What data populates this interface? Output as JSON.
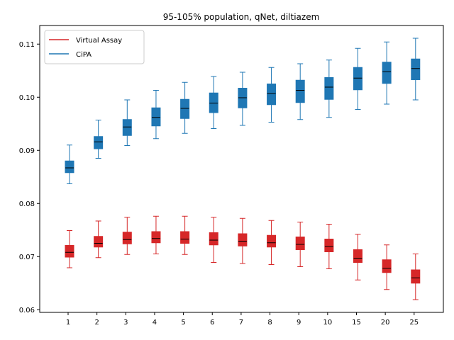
{
  "chart_data": {
    "type": "box",
    "title": "95-105% population, qNet, diltiazem",
    "xlabel": "",
    "ylabel": "",
    "categories": [
      "1",
      "2",
      "3",
      "4",
      "5",
      "6",
      "7",
      "8",
      "9",
      "10",
      "15",
      "20",
      "25"
    ],
    "ylim": [
      0.0595,
      0.1135
    ],
    "yticks": [
      0.06,
      0.07,
      0.08,
      0.09,
      0.1,
      0.11
    ],
    "ytick_labels": [
      "0.06",
      "0.07",
      "0.08",
      "0.09",
      "0.10",
      "0.11"
    ],
    "grid": false,
    "legend_position": "top-left",
    "series": [
      {
        "name": "Virtual Assay",
        "color": "#d62728",
        "boxes": [
          {
            "whislo": 0.0679,
            "q1": 0.0699,
            "med": 0.0708,
            "q3": 0.0721,
            "whishi": 0.0749
          },
          {
            "whislo": 0.0698,
            "q1": 0.0718,
            "med": 0.0725,
            "q3": 0.0738,
            "whishi": 0.0767
          },
          {
            "whislo": 0.0704,
            "q1": 0.0724,
            "med": 0.0732,
            "q3": 0.0746,
            "whishi": 0.0774
          },
          {
            "whislo": 0.0705,
            "q1": 0.0726,
            "med": 0.0734,
            "q3": 0.0747,
            "whishi": 0.0776
          },
          {
            "whislo": 0.0704,
            "q1": 0.0725,
            "med": 0.0733,
            "q3": 0.0747,
            "whishi": 0.0776
          },
          {
            "whislo": 0.0689,
            "q1": 0.0722,
            "med": 0.0731,
            "q3": 0.0745,
            "whishi": 0.0774
          },
          {
            "whislo": 0.0687,
            "q1": 0.072,
            "med": 0.0729,
            "q3": 0.0743,
            "whishi": 0.0772
          },
          {
            "whislo": 0.0685,
            "q1": 0.0718,
            "med": 0.0726,
            "q3": 0.074,
            "whishi": 0.0768
          },
          {
            "whislo": 0.0681,
            "q1": 0.0713,
            "med": 0.0723,
            "q3": 0.0737,
            "whishi": 0.0765
          },
          {
            "whislo": 0.0677,
            "q1": 0.0709,
            "med": 0.0719,
            "q3": 0.0733,
            "whishi": 0.0761
          },
          {
            "whislo": 0.0656,
            "q1": 0.0689,
            "med": 0.0697,
            "q3": 0.0713,
            "whishi": 0.0742
          },
          {
            "whislo": 0.0638,
            "q1": 0.067,
            "med": 0.0678,
            "q3": 0.0694,
            "whishi": 0.0722
          },
          {
            "whislo": 0.0619,
            "q1": 0.065,
            "med": 0.066,
            "q3": 0.0675,
            "whishi": 0.0705
          }
        ]
      },
      {
        "name": "CiPA",
        "color": "#1f77b4",
        "boxes": [
          {
            "whislo": 0.0837,
            "q1": 0.0858,
            "med": 0.0867,
            "q3": 0.088,
            "whishi": 0.091
          },
          {
            "whislo": 0.0885,
            "q1": 0.0903,
            "med": 0.0916,
            "q3": 0.0926,
            "whishi": 0.0957
          },
          {
            "whislo": 0.0909,
            "q1": 0.0928,
            "med": 0.0944,
            "q3": 0.0958,
            "whishi": 0.0995
          },
          {
            "whislo": 0.0922,
            "q1": 0.0946,
            "med": 0.0962,
            "q3": 0.098,
            "whishi": 0.1013
          },
          {
            "whislo": 0.0932,
            "q1": 0.096,
            "med": 0.0979,
            "q3": 0.0996,
            "whishi": 0.1028
          },
          {
            "whislo": 0.0941,
            "q1": 0.0971,
            "med": 0.0989,
            "q3": 0.1008,
            "whishi": 0.1039
          },
          {
            "whislo": 0.0947,
            "q1": 0.098,
            "med": 0.0999,
            "q3": 0.1017,
            "whishi": 0.1047
          },
          {
            "whislo": 0.0953,
            "q1": 0.0986,
            "med": 0.1007,
            "q3": 0.1025,
            "whishi": 0.1056
          },
          {
            "whislo": 0.0958,
            "q1": 0.099,
            "med": 0.1013,
            "q3": 0.1032,
            "whishi": 0.1063
          },
          {
            "whislo": 0.0962,
            "q1": 0.0996,
            "med": 0.1019,
            "q3": 0.1037,
            "whishi": 0.107
          },
          {
            "whislo": 0.0977,
            "q1": 0.1014,
            "med": 0.1036,
            "q3": 0.1056,
            "whishi": 0.1092
          },
          {
            "whislo": 0.0987,
            "q1": 0.1026,
            "med": 0.1048,
            "q3": 0.1066,
            "whishi": 0.1104
          },
          {
            "whislo": 0.0995,
            "q1": 0.1033,
            "med": 0.1054,
            "q3": 0.1072,
            "whishi": 0.1111
          }
        ]
      }
    ]
  }
}
